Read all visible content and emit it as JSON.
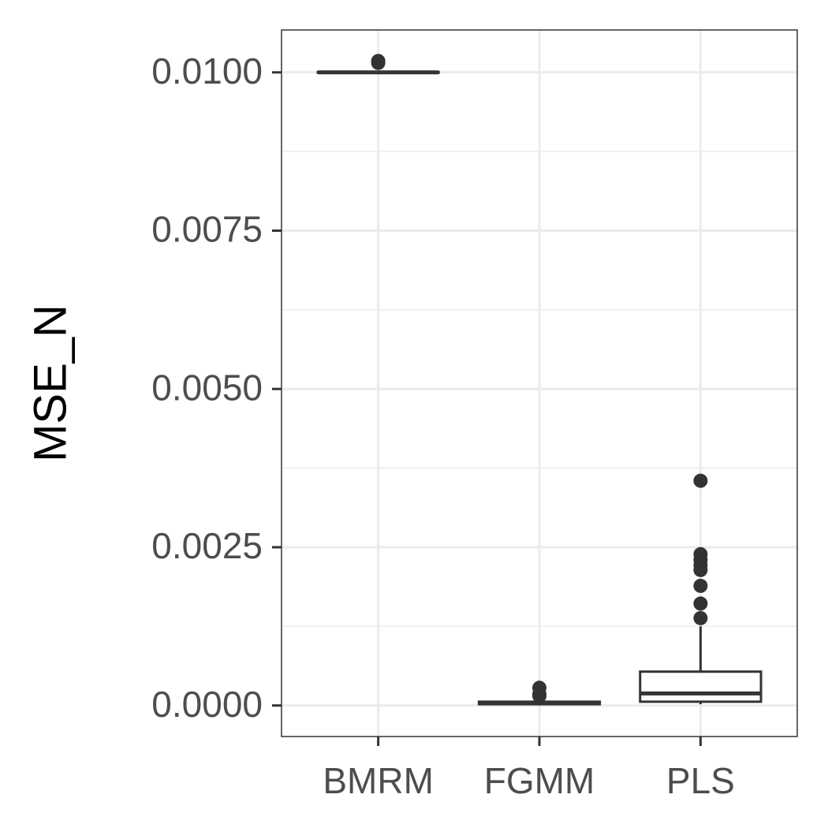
{
  "chart_data": {
    "type": "box",
    "ylabel": "MSE_N",
    "categories": [
      "BMRM",
      "FGMM",
      "PLS"
    ],
    "boxes": [
      {
        "min": 0.00999,
        "q1": 0.009995,
        "median": 0.01,
        "q3": 0.010005,
        "max": 0.01001,
        "outliers": [
          0.01018,
          0.01015
        ]
      },
      {
        "min": 0.0,
        "q1": 2e-05,
        "median": 4e-05,
        "q3": 6e-05,
        "max": 0.0001,
        "outliers": [
          0.00028,
          0.00018,
          0.00015
        ]
      },
      {
        "min": 2e-05,
        "q1": 6e-05,
        "median": 0.00019,
        "q3": 0.000535,
        "max": 0.00125,
        "outliers": [
          0.00355,
          0.00239,
          0.0023,
          0.00222,
          0.00214,
          0.00189,
          0.00161,
          0.00138
        ]
      }
    ],
    "ylim": [
      -0.00049,
      0.01067
    ],
    "yticks": [
      {
        "value": 0.0,
        "label": "0.0000"
      },
      {
        "value": 0.0025,
        "label": "0.0025"
      },
      {
        "value": 0.005,
        "label": "0.0050"
      },
      {
        "value": 0.0075,
        "label": "0.0075"
      },
      {
        "value": 0.01,
        "label": "0.0100"
      }
    ],
    "minor_yticks": [
      0.00125,
      0.00375,
      0.00625,
      0.00875
    ],
    "grid": true,
    "color": "#333333"
  }
}
